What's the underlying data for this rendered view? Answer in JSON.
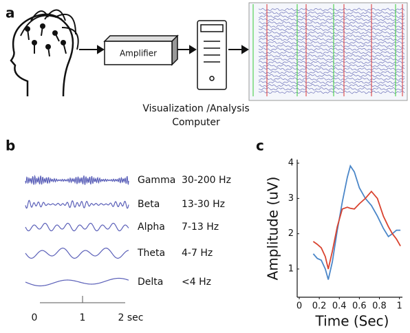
{
  "panel_labels": [
    "a",
    "b",
    "c"
  ],
  "diagram": {
    "amplifier": "Amplifier",
    "computer_caption": [
      "Visualization /Analysis",
      "Computer"
    ]
  },
  "waves": [
    {
      "name": "Gamma",
      "band": "30-200 Hz"
    },
    {
      "name": "Beta",
      "band": "13-30 Hz"
    },
    {
      "name": "Alpha",
      "band": "7-13 Hz"
    },
    {
      "name": "Theta",
      "band": "4-7 Hz"
    },
    {
      "name": "Delta",
      "band": "<4 Hz"
    }
  ],
  "time_axis": {
    "xlim": [
      0,
      2
    ],
    "xticks": [
      0,
      1,
      {
        "value": 2,
        "label": "2 sec"
      }
    ]
  },
  "chart_data": {
    "type": "line",
    "xlabel": "Time (Sec)",
    "ylabel": "Amplitude (uV)",
    "x": [
      0.14,
      0.18,
      0.22,
      0.26,
      0.29,
      0.33,
      0.38,
      0.43,
      0.48,
      0.51,
      0.55,
      0.6,
      0.66,
      0.72,
      0.78,
      0.84,
      0.89,
      0.93,
      0.97,
      1.01
    ],
    "series": [
      {
        "color": "#4a86c8",
        "values": [
          1.43,
          1.3,
          1.25,
          1.0,
          0.7,
          1.2,
          2.1,
          2.9,
          3.6,
          3.92,
          3.75,
          3.3,
          3.0,
          2.8,
          2.5,
          2.15,
          1.92,
          2.0,
          2.1,
          2.1
        ]
      },
      {
        "color": "#d9432f",
        "values": [
          1.78,
          1.7,
          1.6,
          1.35,
          1.0,
          1.5,
          2.2,
          2.7,
          2.75,
          2.72,
          2.7,
          2.85,
          3.0,
          3.2,
          3.0,
          2.5,
          2.2,
          2.0,
          1.85,
          1.65
        ]
      }
    ],
    "xlim": [
      0,
      1.03
    ],
    "ylim": [
      0.2,
      4.1
    ],
    "xticks": [
      0,
      0.2,
      0.4,
      0.6,
      0.8,
      1
    ],
    "yticks": [
      1,
      2,
      3,
      4
    ]
  }
}
